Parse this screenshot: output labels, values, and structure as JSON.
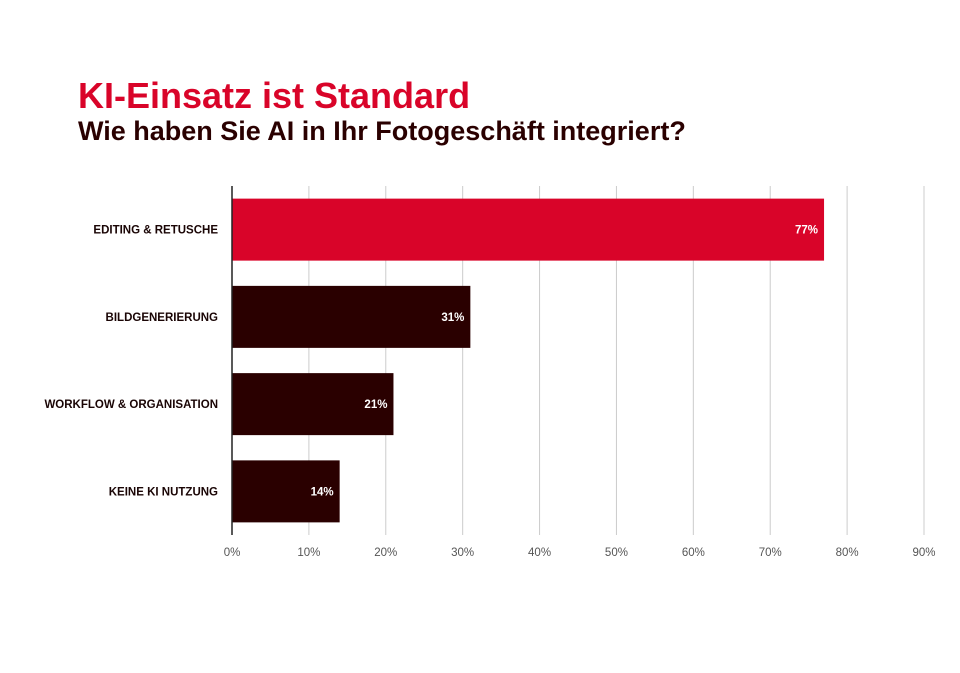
{
  "colors": {
    "highlight": "#d90429",
    "bar": "#2a0000",
    "grid": "#cccccc",
    "axis": "#222222"
  },
  "chart_data": {
    "type": "bar",
    "orientation": "horizontal",
    "title": "KI-Einsatz ist Standard",
    "subtitle": "Wie haben Sie AI in Ihr Fotogeschäft integriert?",
    "categories": [
      "EDITING & RETUSCHE",
      "BILDGENERIERUNG",
      "WORKFLOW & ORGANISATION",
      "KEINE KI NUTZUNG"
    ],
    "values": [
      77,
      31,
      21,
      14
    ],
    "value_labels": [
      "77%",
      "31%",
      "21%",
      "14%"
    ],
    "highlight_index": 0,
    "xlim": [
      0,
      90
    ],
    "xticks": [
      0,
      10,
      20,
      30,
      40,
      50,
      60,
      70,
      80,
      90
    ],
    "xtick_labels": [
      "0%",
      "10%",
      "20%",
      "30%",
      "40%",
      "50%",
      "60%",
      "70%",
      "80%",
      "90%"
    ],
    "grid": true,
    "legend": false
  }
}
